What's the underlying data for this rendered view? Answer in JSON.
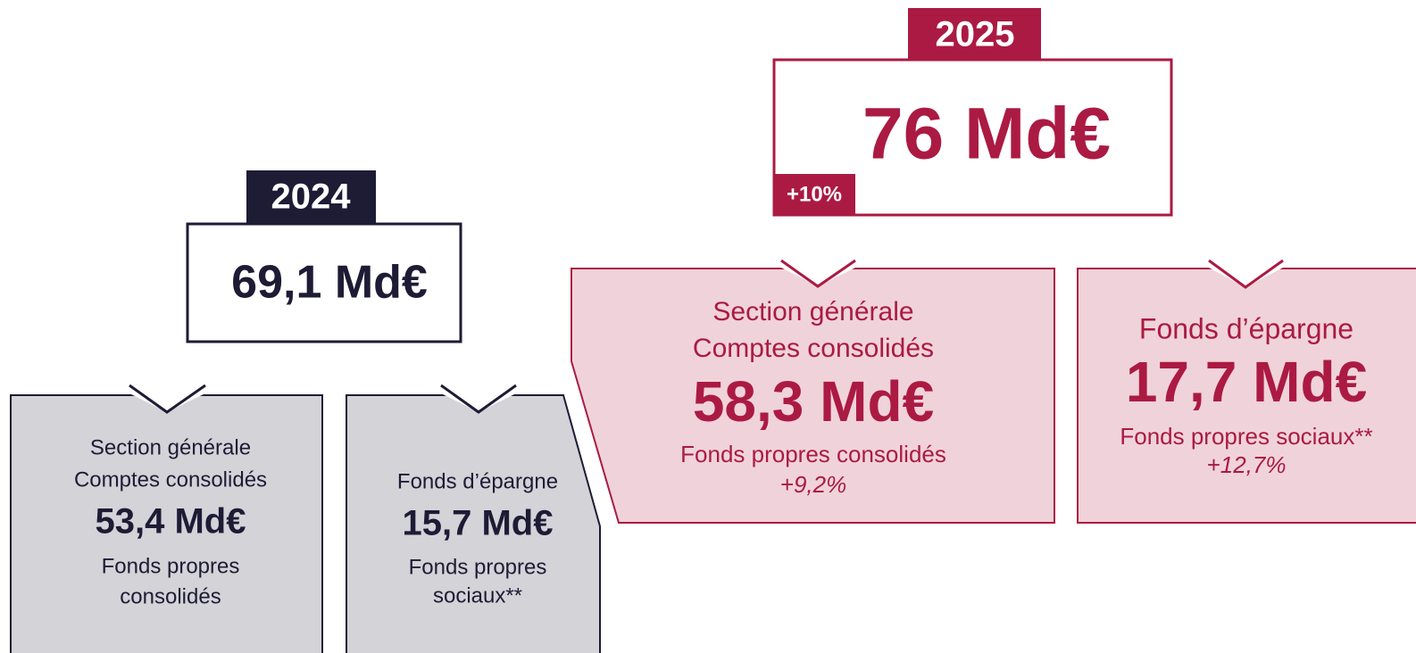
{
  "y2024": {
    "year": "2024",
    "total": "69,1 Md€",
    "boxes": [
      {
        "lines": [
          "Section générale",
          "Comptes consolidés"
        ],
        "value": "53,4 Md€",
        "caption": [
          "Fonds propres",
          "consolidés"
        ]
      },
      {
        "lines": [
          "Fonds d’épargne"
        ],
        "value": "15,7 Md€",
        "caption": [
          "Fonds propres",
          "sociaux**"
        ]
      }
    ]
  },
  "y2025": {
    "year": "2025",
    "total": "76 Md€",
    "change": "+10%",
    "boxes": [
      {
        "lines": [
          "Section générale",
          "Comptes consolidés"
        ],
        "value": "58,3 Md€",
        "caption": [
          "Fonds propres consolidés"
        ],
        "change": "+9,2%"
      },
      {
        "lines": [
          "Fonds d’épargne"
        ],
        "value": "17,7 Md€",
        "caption": [
          "Fonds propres sociaux**"
        ],
        "change": "+12,7%"
      }
    ]
  }
}
